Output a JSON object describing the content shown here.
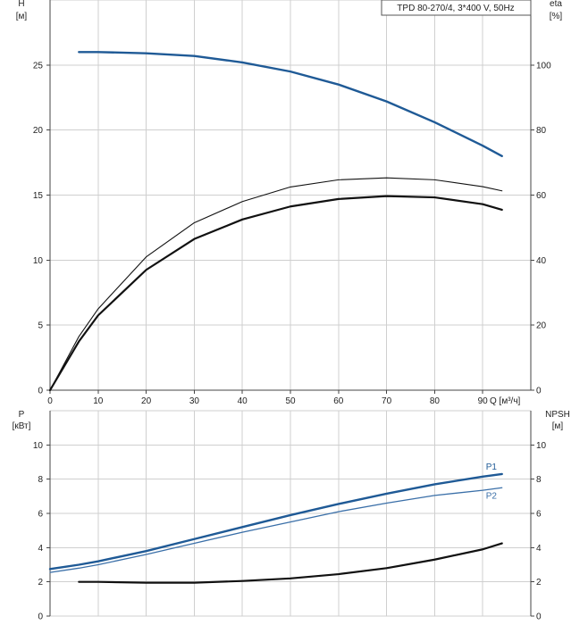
{
  "chart_data": [
    {
      "type": "line",
      "title": "TPD 80-270/4, 3*400 V, 50Hz",
      "xlabel": "Q [м³/ч]",
      "ylabel_left": "H",
      "ylabel_left_unit": "[м]",
      "ylabel_right": "eta",
      "ylabel_right_unit": "[%]",
      "xlim": [
        0,
        100
      ],
      "ylim_left": [
        0,
        30
      ],
      "ylim_right": [
        0,
        120
      ],
      "x_ticks": [
        0,
        10,
        20,
        30,
        40,
        50,
        60,
        70,
        80,
        90
      ],
      "y_left_ticks": [
        0,
        5,
        10,
        15,
        20,
        25
      ],
      "y_right_ticks": [
        0,
        20,
        40,
        60,
        80,
        100
      ],
      "grid": true,
      "series": [
        {
          "axis": "left",
          "color": "#1f5a96",
          "x": [
            6,
            10,
            20,
            30,
            40,
            50,
            60,
            70,
            80,
            90,
            94
          ],
          "y": [
            26.0,
            26.0,
            25.9,
            25.7,
            25.2,
            24.5,
            23.5,
            22.2,
            20.6,
            18.8,
            18.0
          ]
        },
        {
          "axis": "right",
          "color": "#111111",
          "x": [
            0,
            6,
            10,
            20,
            30,
            40,
            50,
            60,
            70,
            80,
            90,
            94
          ],
          "y": [
            0,
            16.5,
            25,
            41,
            51.5,
            58,
            62.5,
            64.7,
            65.3,
            64.7,
            62.6,
            61.3
          ]
        },
        {
          "axis": "right",
          "color": "#111111",
          "x": [
            0,
            6,
            10,
            20,
            30,
            40,
            50,
            60,
            70,
            80,
            90,
            94
          ],
          "y": [
            0,
            15,
            23,
            37,
            46.5,
            52.5,
            56.5,
            58.8,
            59.7,
            59.3,
            57.2,
            55.5
          ]
        }
      ]
    },
    {
      "type": "line",
      "xlim": [
        0,
        100
      ],
      "ylabel_left": "P",
      "ylabel_left_unit": "[кВт]",
      "ylabel_right": "NPSH",
      "ylabel_right_unit": "[м]",
      "ylim_left": [
        0,
        12
      ],
      "ylim_right": [
        0,
        12
      ],
      "y_left_ticks": [
        0,
        2,
        4,
        6,
        8,
        10
      ],
      "y_right_ticks": [
        0,
        2,
        4,
        6,
        8,
        10
      ],
      "grid": true,
      "series": [
        {
          "name": "P1",
          "axis": "left",
          "color": "#1f5a96",
          "x": [
            0,
            6,
            10,
            20,
            30,
            40,
            50,
            60,
            70,
            80,
            90,
            94
          ],
          "y": [
            2.75,
            3.0,
            3.2,
            3.8,
            4.5,
            5.2,
            5.9,
            6.55,
            7.15,
            7.7,
            8.15,
            8.3
          ]
        },
        {
          "name": "P2",
          "axis": "left",
          "color": "#3a6fa8",
          "x": [
            0,
            6,
            10,
            20,
            30,
            40,
            50,
            60,
            70,
            80,
            90,
            94
          ],
          "y": [
            2.55,
            2.8,
            3.0,
            3.6,
            4.25,
            4.9,
            5.5,
            6.1,
            6.6,
            7.05,
            7.35,
            7.5
          ]
        },
        {
          "axis": "right",
          "color": "#111111",
          "x": [
            6,
            10,
            20,
            30,
            40,
            50,
            60,
            70,
            80,
            90,
            94
          ],
          "y": [
            2.0,
            2.0,
            1.95,
            1.95,
            2.05,
            2.2,
            2.45,
            2.8,
            3.3,
            3.9,
            4.25
          ]
        }
      ]
    }
  ]
}
